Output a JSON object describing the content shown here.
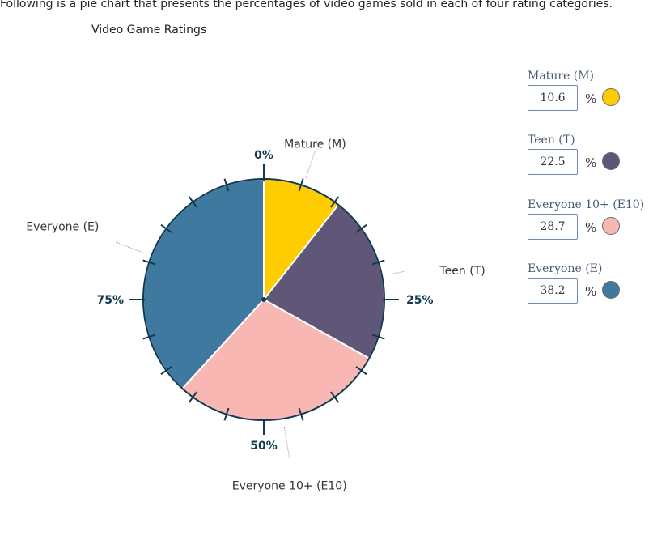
{
  "prompt": "Following is a pie chart that presents the percentages of video games sold in each of four rating categories.",
  "chart_data": {
    "type": "pie",
    "title": "Video Game Ratings",
    "slices": [
      {
        "label": "Mature (M)",
        "value": 10.6,
        "color": "#ffcc00"
      },
      {
        "label": "Teen (T)",
        "value": 22.5,
        "color": "#5f5678"
      },
      {
        "label": "Everyone 10+ (E10)",
        "value": 28.7,
        "color": "#f8b7b2"
      },
      {
        "label": "Everyone (E)",
        "value": 38.2,
        "color": "#3f79a0"
      }
    ],
    "reference_ticks": [
      "0%",
      "25%",
      "50%",
      "75%"
    ],
    "legend": "right"
  },
  "panel": {
    "items": [
      {
        "name": "Mature (M)",
        "value": "10.6",
        "unit": "%",
        "color": "#ffcc00"
      },
      {
        "name": "Teen (T)",
        "value": "22.5",
        "unit": "%",
        "color": "#5f5678"
      },
      {
        "name": "Everyone 10+ (E10)",
        "value": "28.7",
        "unit": "%",
        "color": "#f8b7b2"
      },
      {
        "name": "Everyone (E)",
        "value": "38.2",
        "unit": "%",
        "color": "#3f79a0"
      }
    ]
  }
}
